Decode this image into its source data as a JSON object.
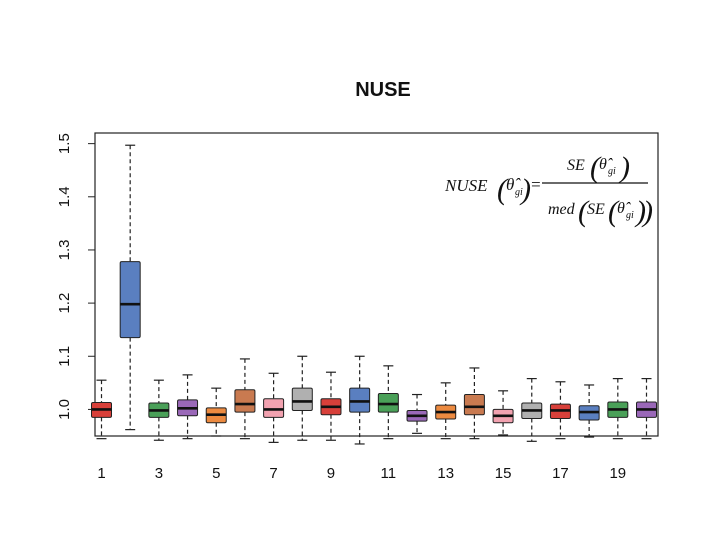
{
  "chart_data": {
    "type": "box",
    "title": "NUSE",
    "xlabel": "",
    "ylabel": "",
    "ylim": [
      0.95,
      1.52
    ],
    "y_ticks": [
      "1.0",
      "1.1",
      "1.2",
      "1.3",
      "1.4",
      "1.5"
    ],
    "x_ticks": [
      "1",
      "3",
      "5",
      "7",
      "9",
      "11",
      "13",
      "15",
      "17",
      "19"
    ],
    "grid": false,
    "formula": {
      "lhs": "NUSE",
      "numerator": "SE",
      "denominator_prefix": "med",
      "denominator_se": "SE",
      "symbol": "θ̂",
      "subscript": "gi",
      "equals": "="
    },
    "boxes": [
      {
        "x": 1,
        "min": 0.945,
        "q1": 0.985,
        "median": 1.0,
        "q3": 1.013,
        "max": 1.055,
        "color": "#d8403a"
      },
      {
        "x": 2,
        "min": 0.962,
        "q1": 1.135,
        "median": 1.198,
        "q3": 1.278,
        "max": 1.497,
        "color": "#5a7fc0"
      },
      {
        "x": 3,
        "min": 0.942,
        "q1": 0.985,
        "median": 0.998,
        "q3": 1.012,
        "max": 1.055,
        "color": "#4aa058"
      },
      {
        "x": 4,
        "min": 0.945,
        "q1": 0.988,
        "median": 1.002,
        "q3": 1.018,
        "max": 1.065,
        "color": "#9a68b8"
      },
      {
        "x": 5,
        "min": 0.95,
        "q1": 0.975,
        "median": 0.99,
        "q3": 1.003,
        "max": 1.04,
        "color": "#ec8a40"
      },
      {
        "x": 6,
        "min": 0.945,
        "q1": 0.995,
        "median": 1.01,
        "q3": 1.037,
        "max": 1.095,
        "color": "#c97a50"
      },
      {
        "x": 7,
        "min": 0.938,
        "q1": 0.985,
        "median": 1.0,
        "q3": 1.02,
        "max": 1.068,
        "color": "#f2a2b0"
      },
      {
        "x": 8,
        "min": 0.942,
        "q1": 0.998,
        "median": 1.015,
        "q3": 1.04,
        "max": 1.1,
        "color": "#b0b0b0"
      },
      {
        "x": 9,
        "min": 0.942,
        "q1": 0.99,
        "median": 1.005,
        "q3": 1.02,
        "max": 1.07,
        "color": "#d8403a"
      },
      {
        "x": 10,
        "min": 0.935,
        "q1": 0.995,
        "median": 1.015,
        "q3": 1.04,
        "max": 1.1,
        "color": "#5a7fc0"
      },
      {
        "x": 11,
        "min": 0.945,
        "q1": 0.995,
        "median": 1.01,
        "q3": 1.03,
        "max": 1.082,
        "color": "#4aa058"
      },
      {
        "x": 12,
        "min": 0.955,
        "q1": 0.978,
        "median": 0.988,
        "q3": 0.998,
        "max": 1.028,
        "color": "#9a68b8"
      },
      {
        "x": 13,
        "min": 0.945,
        "q1": 0.982,
        "median": 0.995,
        "q3": 1.008,
        "max": 1.05,
        "color": "#ec8a40"
      },
      {
        "x": 14,
        "min": 0.945,
        "q1": 0.99,
        "median": 1.005,
        "q3": 1.028,
        "max": 1.078,
        "color": "#c97a50"
      },
      {
        "x": 15,
        "min": 0.952,
        "q1": 0.975,
        "median": 0.988,
        "q3": 1.0,
        "max": 1.035,
        "color": "#f2a2b0"
      },
      {
        "x": 16,
        "min": 0.94,
        "q1": 0.983,
        "median": 0.998,
        "q3": 1.012,
        "max": 1.058,
        "color": "#b0b0b0"
      },
      {
        "x": 17,
        "min": 0.945,
        "q1": 0.983,
        "median": 0.998,
        "q3": 1.01,
        "max": 1.052,
        "color": "#d8403a"
      },
      {
        "x": 18,
        "min": 0.948,
        "q1": 0.98,
        "median": 0.995,
        "q3": 1.007,
        "max": 1.046,
        "color": "#5a7fc0"
      },
      {
        "x": 19,
        "min": 0.945,
        "q1": 0.985,
        "median": 1.0,
        "q3": 1.014,
        "max": 1.058,
        "color": "#4aa058"
      },
      {
        "x": 20,
        "min": 0.945,
        "q1": 0.985,
        "median": 1.0,
        "q3": 1.014,
        "max": 1.058,
        "color": "#9a68b8"
      }
    ]
  }
}
